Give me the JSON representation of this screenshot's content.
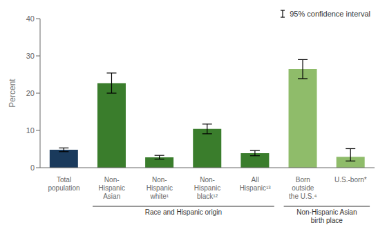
{
  "chart_data": {
    "type": "bar",
    "categories": [
      "Total\npopulation",
      "Non-\nHispanic\nAsian",
      "Non-\nHispanic\nwhite¹",
      "Non-\nHispanic\nblack¹²",
      "All\nHispanic¹³",
      "Born\noutside\nthe U.S.⁴",
      "U.S.-born*"
    ],
    "values": [
      4.8,
      22.7,
      2.8,
      10.4,
      3.9,
      26.5,
      2.9
    ],
    "errors_lower": [
      0.5,
      2.7,
      0.5,
      1.3,
      0.7,
      2.6,
      1.1
    ],
    "errors_upper": [
      0.5,
      2.7,
      0.5,
      1.3,
      0.7,
      2.5,
      2.2
    ],
    "error_label": "95% confidence interval",
    "colors": [
      "#1a3a5c",
      "#3a7d2c",
      "#3a7d2c",
      "#3a7d2c",
      "#3a7d2c",
      "#8fbc6a",
      "#8fbc6a"
    ],
    "ylabel": "Percent",
    "ylim": [
      0,
      40
    ],
    "yticks": [
      0,
      10,
      20,
      30,
      40
    ],
    "grid": false,
    "legend": "upper right",
    "groups": [
      {
        "label": "Race and Hispanic origin",
        "from": "Non-\nHispanic\nAsian",
        "to": "All\nHispanic¹³"
      },
      {
        "label": "Non-Hispanic Asian\nbirth place",
        "from": "Born\noutside\nthe U.S.⁴",
        "to": "U.S.-born*"
      }
    ]
  }
}
